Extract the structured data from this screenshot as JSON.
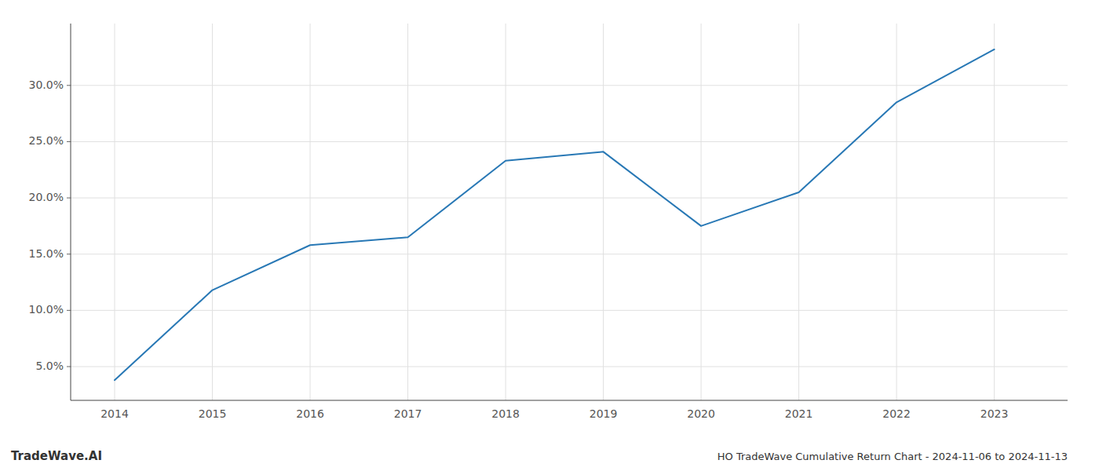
{
  "chart_data": {
    "type": "line",
    "title": "HO TradeWave Cumulative Return Chart - 2024-11-06 to 2024-11-13",
    "annotations": [
      "TradeWave.AI"
    ],
    "x": [
      2014,
      2015,
      2016,
      2017,
      2018,
      2019,
      2020,
      2021,
      2022,
      2023
    ],
    "values": [
      3.8,
      11.8,
      15.8,
      16.5,
      23.3,
      24.1,
      17.5,
      20.5,
      28.5,
      33.2
    ],
    "color": "#2878b5",
    "xlim": [
      2013.55,
      2023.75
    ],
    "xticks": [
      2014,
      2015,
      2016,
      2017,
      2018,
      2019,
      2020,
      2021,
      2022,
      2023
    ],
    "ylim": [
      2.0,
      35.5
    ],
    "yticks": [
      {
        "value": 5.0,
        "label": "5.0%"
      },
      {
        "value": 10.0,
        "label": "10.0%"
      },
      {
        "value": 15.0,
        "label": "15.0%"
      },
      {
        "value": 20.0,
        "label": "20.0%"
      },
      {
        "value": 25.0,
        "label": "25.0%"
      },
      {
        "value": 30.0,
        "label": "30.0%"
      }
    ],
    "grid": true
  }
}
